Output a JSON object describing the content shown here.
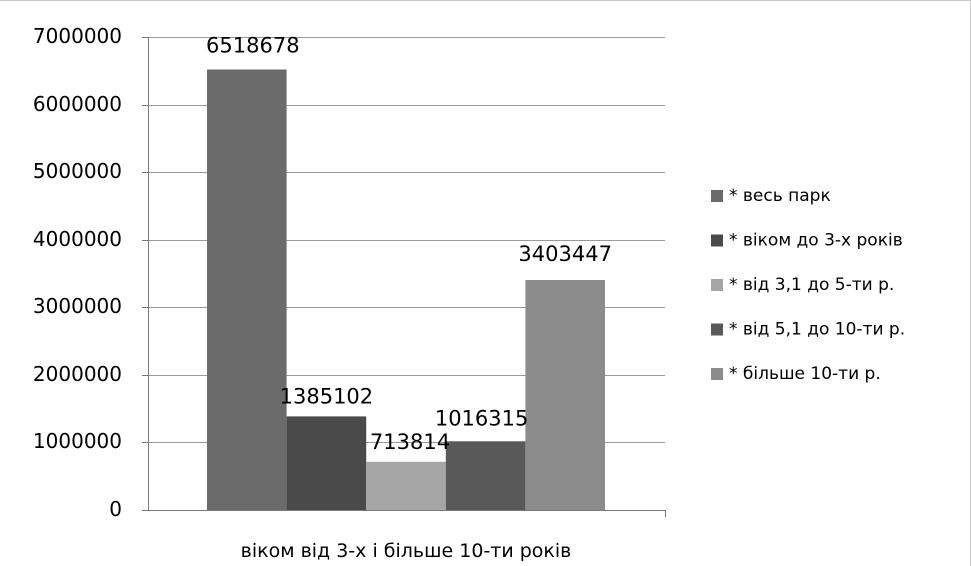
{
  "chart_data": {
    "type": "bar",
    "title": "",
    "xlabel": "",
    "ylabel": "",
    "categories": [
      "віком від 3-х і більше 10-ти років"
    ],
    "ylim": [
      0,
      7000000
    ],
    "yticks": [
      0,
      1000000,
      2000000,
      3000000,
      4000000,
      5000000,
      6000000,
      7000000
    ],
    "ytick_labels": [
      "0",
      "1000000",
      "2000000",
      "3000000",
      "4000000",
      "5000000",
      "6000000",
      "7000000"
    ],
    "grid": true,
    "legend_position": "right",
    "series": [
      {
        "name": "* весь парк",
        "values": [
          6518678
        ],
        "data_label": "6518678",
        "color": "#6b6b6b"
      },
      {
        "name": "* віком до 3-х років",
        "values": [
          1385102
        ],
        "data_label": "1385102",
        "color": "#4a4a4a"
      },
      {
        "name": "* від 3,1 до 5-ти р.",
        "values": [
          713814
        ],
        "data_label": "713814",
        "color": "#a6a6a6"
      },
      {
        "name": "* від 5,1 до 10-ти р.",
        "values": [
          1016315
        ],
        "data_label": "1016315",
        "color": "#595959"
      },
      {
        "name": "* більше 10-ти р.",
        "values": [
          3403447
        ],
        "data_label": "3403447",
        "color": "#8c8c8c"
      }
    ]
  }
}
